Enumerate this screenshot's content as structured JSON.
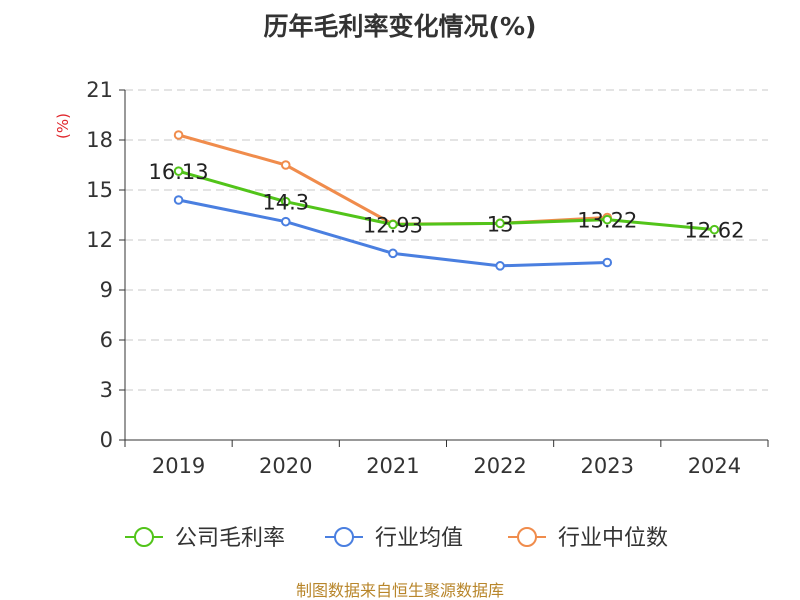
{
  "chart_data": {
    "type": "line",
    "title": "历年毛利率变化情况(%)",
    "ylabel": "(%)",
    "xlabel": "",
    "categories": [
      "2019",
      "2020",
      "2021",
      "2022",
      "2023",
      "2024"
    ],
    "ylim": [
      0,
      21
    ],
    "yticks": [
      0,
      3,
      6,
      9,
      12,
      15,
      18,
      21
    ],
    "grid": true,
    "legend_position": "bottom",
    "series": [
      {
        "name": "公司毛利率",
        "color": "#52c41a",
        "values": [
          16.13,
          14.3,
          12.93,
          13,
          13.22,
          12.62
        ],
        "labels": [
          "16.13",
          "14.3",
          "12.93",
          "13",
          "13.22",
          "12.62"
        ]
      },
      {
        "name": "行业均值",
        "color": "#4a7fe0",
        "values": [
          14.4,
          13.1,
          11.2,
          10.45,
          10.65,
          null
        ]
      },
      {
        "name": "行业中位数",
        "color": "#f08c4c",
        "values": [
          18.3,
          16.5,
          12.95,
          13.0,
          13.35,
          null
        ]
      }
    ]
  },
  "footer": {
    "source": "制图数据来自恒生聚源数据库"
  }
}
